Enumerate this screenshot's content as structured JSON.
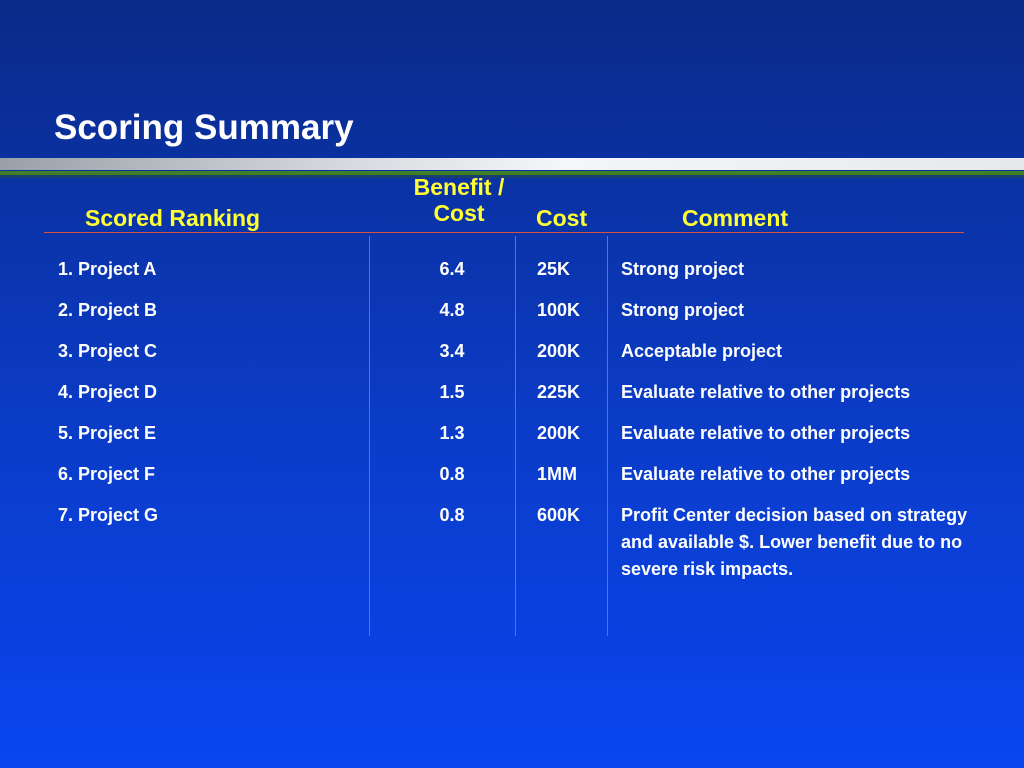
{
  "title": "Scoring Summary",
  "headers": {
    "ranking": "Scored Ranking",
    "benefit_cost": "Benefit / Cost",
    "cost": "Cost",
    "comment": "Comment"
  },
  "rows": [
    {
      "rank": "1. Project A",
      "bc": "6.4",
      "cost": "25K",
      "comment": "Strong project"
    },
    {
      "rank": "2. Project B",
      "bc": "4.8",
      "cost": "100K",
      "comment": "Strong project"
    },
    {
      "rank": "3. Project C",
      "bc": "3.4",
      "cost": "200K",
      "comment": "Acceptable project"
    },
    {
      "rank": "4. Project D",
      "bc": "1.5",
      "cost": "225K",
      "comment": "Evaluate relative to other projects"
    },
    {
      "rank": "5. Project E",
      "bc": "1.3",
      "cost": "200K",
      "comment": "Evaluate relative to other projects"
    },
    {
      "rank": "6. Project F",
      "bc": "0.8",
      "cost": "1MM",
      "comment": "Evaluate relative to other projects"
    },
    {
      "rank": "7. Project G",
      "bc": "0.8",
      "cost": "600K",
      "comment": "Profit Center decision based on strategy and available $. Lower benefit due to no severe risk impacts."
    }
  ],
  "colors": {
    "header_text": "#ffff33",
    "rule": "#e0503a",
    "accent_green": "#3f7f2a"
  }
}
